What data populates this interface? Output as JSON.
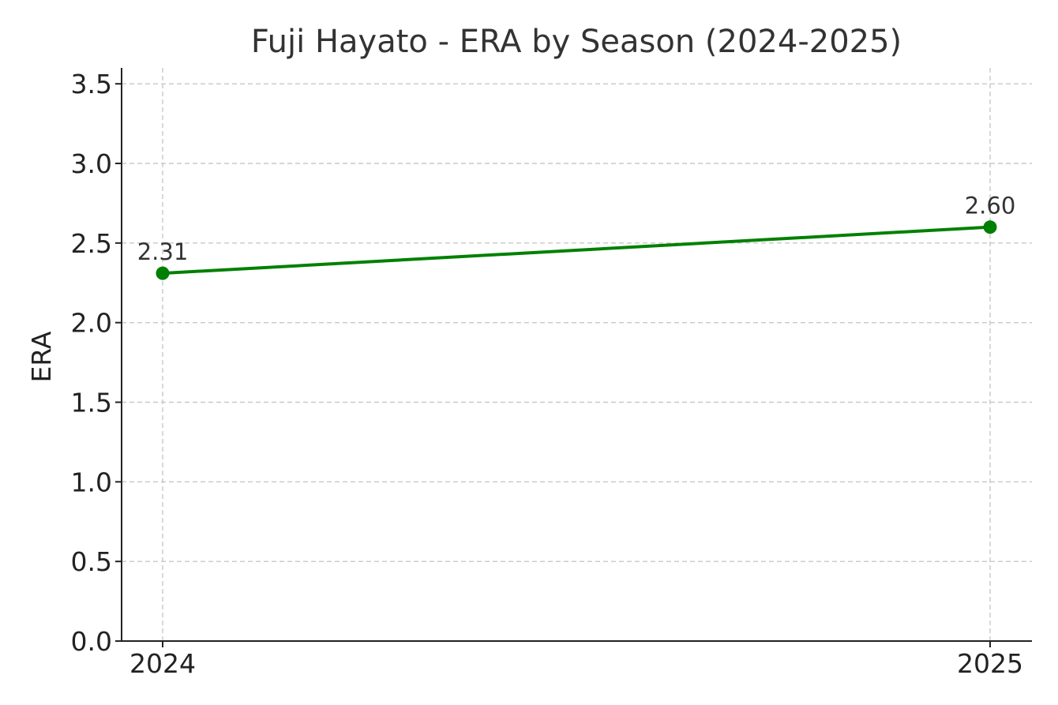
{
  "chart_data": {
    "type": "line",
    "title": "Fuji Hayato - ERA by Season (2024-2025)",
    "xlabel": "",
    "ylabel": "ERA",
    "categories": [
      "2024",
      "2025"
    ],
    "series": [
      {
        "values": [
          2.31,
          2.6
        ],
        "data_labels": [
          "2.31",
          "2.60"
        ],
        "color": "#008000",
        "marker": "circle"
      }
    ],
    "ylim": [
      0,
      3.6
    ],
    "yticks": [
      0.0,
      0.5,
      1.0,
      1.5,
      2.0,
      2.5,
      3.0,
      3.5
    ],
    "ytick_labels": [
      "0.0",
      "0.5",
      "1.0",
      "1.5",
      "2.0",
      "2.5",
      "3.0",
      "3.5"
    ],
    "grid": true,
    "grid_style": "dashed",
    "legend": false
  }
}
